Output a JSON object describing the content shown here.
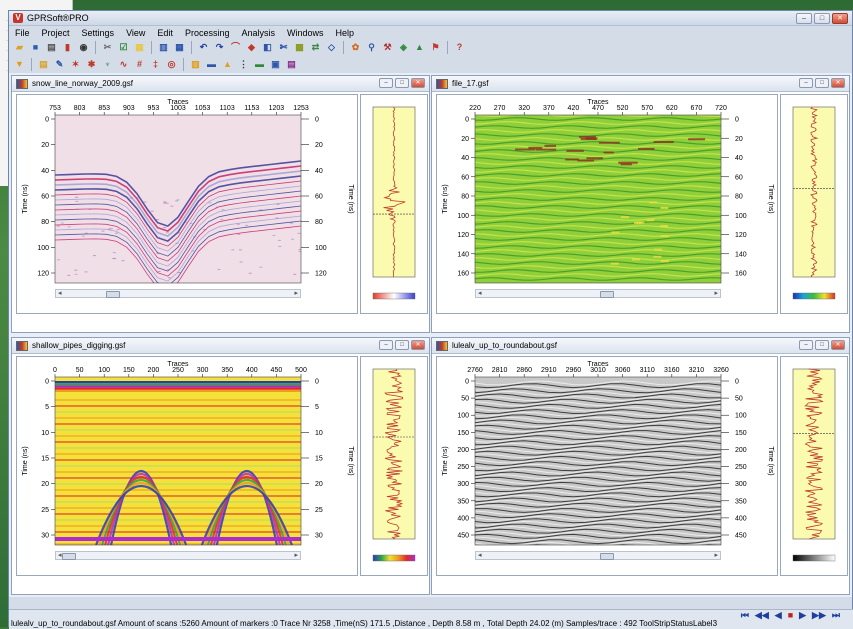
{
  "app": {
    "title": "GPRSoft®PRO",
    "window_buttons": {
      "minimize": "–",
      "maximize": "□",
      "close": "✕"
    }
  },
  "menu": [
    "File",
    "Project",
    "Settings",
    "View",
    "Edit",
    "Processing",
    "Analysis",
    "Windows",
    "Help"
  ],
  "toolbar1": [
    {
      "icon": "open-folder-icon",
      "glyph": "▰",
      "color": "#d9a326"
    },
    {
      "icon": "save-icon",
      "glyph": "■",
      "color": "#2b5fb3"
    },
    {
      "icon": "print-icon",
      "glyph": "▤",
      "color": "#555555"
    },
    {
      "icon": "pdf-icon",
      "glyph": "▮",
      "color": "#c0392b"
    },
    {
      "icon": "camera-icon",
      "glyph": "◉",
      "color": "#333333"
    },
    {
      "icon": "tools-icon",
      "glyph": "✂",
      "color": "#6b6b6b"
    },
    {
      "icon": "check-list-icon",
      "glyph": "☑",
      "color": "#2e8b3a"
    },
    {
      "icon": "notes-icon",
      "glyph": "▦",
      "color": "#e6c84a"
    },
    {
      "icon": "grid-icon",
      "glyph": "▥",
      "color": "#2d56a8"
    },
    {
      "icon": "table-icon",
      "glyph": "▦",
      "color": "#2d56a8"
    },
    {
      "icon": "undo-icon",
      "glyph": "↶",
      "color": "#1e3f9e"
    },
    {
      "icon": "redo-icon",
      "glyph": "↷",
      "color": "#1e3f9e"
    },
    {
      "icon": "curve-icon",
      "glyph": "⌒",
      "color": "#c0392b"
    },
    {
      "icon": "eraser-icon",
      "glyph": "◆",
      "color": "#c0392b"
    },
    {
      "icon": "compare-icon",
      "glyph": "◧",
      "color": "#2d56a8"
    },
    {
      "icon": "cut-icon",
      "glyph": "✄",
      "color": "#2d56a8"
    },
    {
      "icon": "layers-icon",
      "glyph": "▩",
      "color": "#8a9a1a"
    },
    {
      "icon": "swap-icon",
      "glyph": "⇄",
      "color": "#3c8c46"
    },
    {
      "icon": "export-icon",
      "glyph": "◇",
      "color": "#2d56a8"
    },
    {
      "icon": "palette-icon",
      "glyph": "✿",
      "color": "#d66a1f"
    },
    {
      "icon": "zoom-icon",
      "glyph": "⚲",
      "color": "#2d56a8"
    },
    {
      "icon": "hammer-icon",
      "glyph": "⚒",
      "color": "#b32f2f"
    },
    {
      "icon": "flow-icon",
      "glyph": "◈",
      "color": "#2e8b3a"
    },
    {
      "icon": "mountain-icon",
      "glyph": "▲",
      "color": "#2e8b3a"
    },
    {
      "icon": "flag-icon",
      "glyph": "⚑",
      "color": "#c0392b"
    },
    {
      "icon": "help-icon",
      "glyph": "?",
      "color": "#c0392b"
    }
  ],
  "toolbar2": [
    {
      "icon": "filter-icon",
      "glyph": "▼",
      "color": "#e39b13"
    },
    {
      "icon": "chart-icon",
      "glyph": "▤",
      "color": "#d9a326"
    },
    {
      "icon": "marker-icon",
      "glyph": "✎",
      "color": "#2d56a8"
    },
    {
      "icon": "star-line-icon",
      "glyph": "✶",
      "color": "#c0392b"
    },
    {
      "icon": "cross-hatch-icon",
      "glyph": "✱",
      "color": "#c0392b"
    },
    {
      "icon": "antenna-icon",
      "glyph": "♆",
      "color": "#2e8b3a"
    },
    {
      "icon": "wave-icon",
      "glyph": "∿",
      "color": "#c0392b"
    },
    {
      "icon": "binary-icon",
      "glyph": "#",
      "color": "#c0392b"
    },
    {
      "icon": "trace-icon",
      "glyph": "‡",
      "color": "#c0392b"
    },
    {
      "icon": "target-icon",
      "glyph": "◎",
      "color": "#c0392b"
    },
    {
      "icon": "bars-icon",
      "glyph": "▥",
      "color": "#e39b13"
    },
    {
      "icon": "layer-color-icon",
      "glyph": "▬",
      "color": "#2d56a8"
    },
    {
      "icon": "triangle-icon",
      "glyph": "▲",
      "color": "#d9a326"
    },
    {
      "icon": "dots-icon",
      "glyph": "⋮",
      "color": "#333333"
    },
    {
      "icon": "color-bar-icon",
      "glyph": "▬",
      "color": "#2e8b3a"
    },
    {
      "icon": "db-icon",
      "glyph": "▣",
      "color": "#2d56a8"
    },
    {
      "icon": "book-icon",
      "glyph": "▤",
      "color": "#8b2d8b"
    }
  ],
  "windows": [
    {
      "title": "snow_line_norway_2009.gsf",
      "traces_label": "Traces",
      "y_label": "Time (ns)",
      "x_ticks": [
        "753",
        "803",
        "853",
        "903",
        "953",
        "1003",
        "1053",
        "1103",
        "1153",
        "1203",
        "1253"
      ],
      "y_ticks": [
        "0",
        "20",
        "40",
        "60",
        "80",
        "100",
        "120"
      ],
      "style": "snow",
      "wiggle_amp": "burst",
      "palette": [
        "#e23b2b",
        "#ffffff",
        "#3a3fd0"
      ],
      "marker_frac": 0.63
    },
    {
      "title": "file_17.gsf",
      "traces_label": "Traces",
      "y_label": "Time (ns)",
      "x_ticks": [
        "220",
        "270",
        "320",
        "370",
        "420",
        "470",
        "520",
        "570",
        "620",
        "670",
        "720"
      ],
      "y_ticks": [
        "0",
        "20",
        "40",
        "60",
        "80",
        "100",
        "120",
        "140",
        "160"
      ],
      "style": "green",
      "wiggle_amp": "small",
      "palette": [
        "#1b2fb8",
        "#1aa3d9",
        "#3bbf3b",
        "#f0e030",
        "#d93020"
      ],
      "marker_frac": 0.48
    },
    {
      "title": "shallow_pipes_digging.gsf",
      "traces_label": "Traces",
      "y_label": "Time (ns)",
      "x_ticks": [
        "0",
        "50",
        "100",
        "150",
        "200",
        "250",
        "300",
        "350",
        "400",
        "450",
        "500"
      ],
      "y_ticks": [
        "0",
        "5",
        "10",
        "15",
        "20",
        "25",
        "30"
      ],
      "style": "warm",
      "wiggle_amp": "large",
      "palette": [
        "#2a3bb8",
        "#2aa34a",
        "#f0e030",
        "#f09a20",
        "#e02a2a",
        "#b02ad0"
      ],
      "marker_frac": 0.4
    },
    {
      "title": "lulealv_up_to_roundabout.gsf",
      "traces_label": "Traces",
      "y_label": "Time (ns)",
      "x_ticks": [
        "2760",
        "2810",
        "2860",
        "2910",
        "2960",
        "3010",
        "3060",
        "3110",
        "3160",
        "3210",
        "3260"
      ],
      "y_ticks": [
        "0",
        "50",
        "100",
        "150",
        "200",
        "250",
        "300",
        "350",
        "400",
        "450"
      ],
      "style": "gray",
      "wiggle_amp": "large",
      "palette": [
        "#000000",
        "#ffffff"
      ],
      "marker_frac": 0.38
    }
  ],
  "nav": [
    "⏮",
    "◀◀",
    "◀",
    "■",
    "▶",
    "▶▶",
    "⏭"
  ],
  "status": "lulealv_up_to_roundabout.gsf  Amount of scans :5260  Amount of markers :0  Trace Nr 3258  ,Time(nS) 171.5 ,Distance  , Depth  8.58 m  , Total Depth 24.02  (m)  Samples/trace : 492  ToolStripStatusLabel3"
}
